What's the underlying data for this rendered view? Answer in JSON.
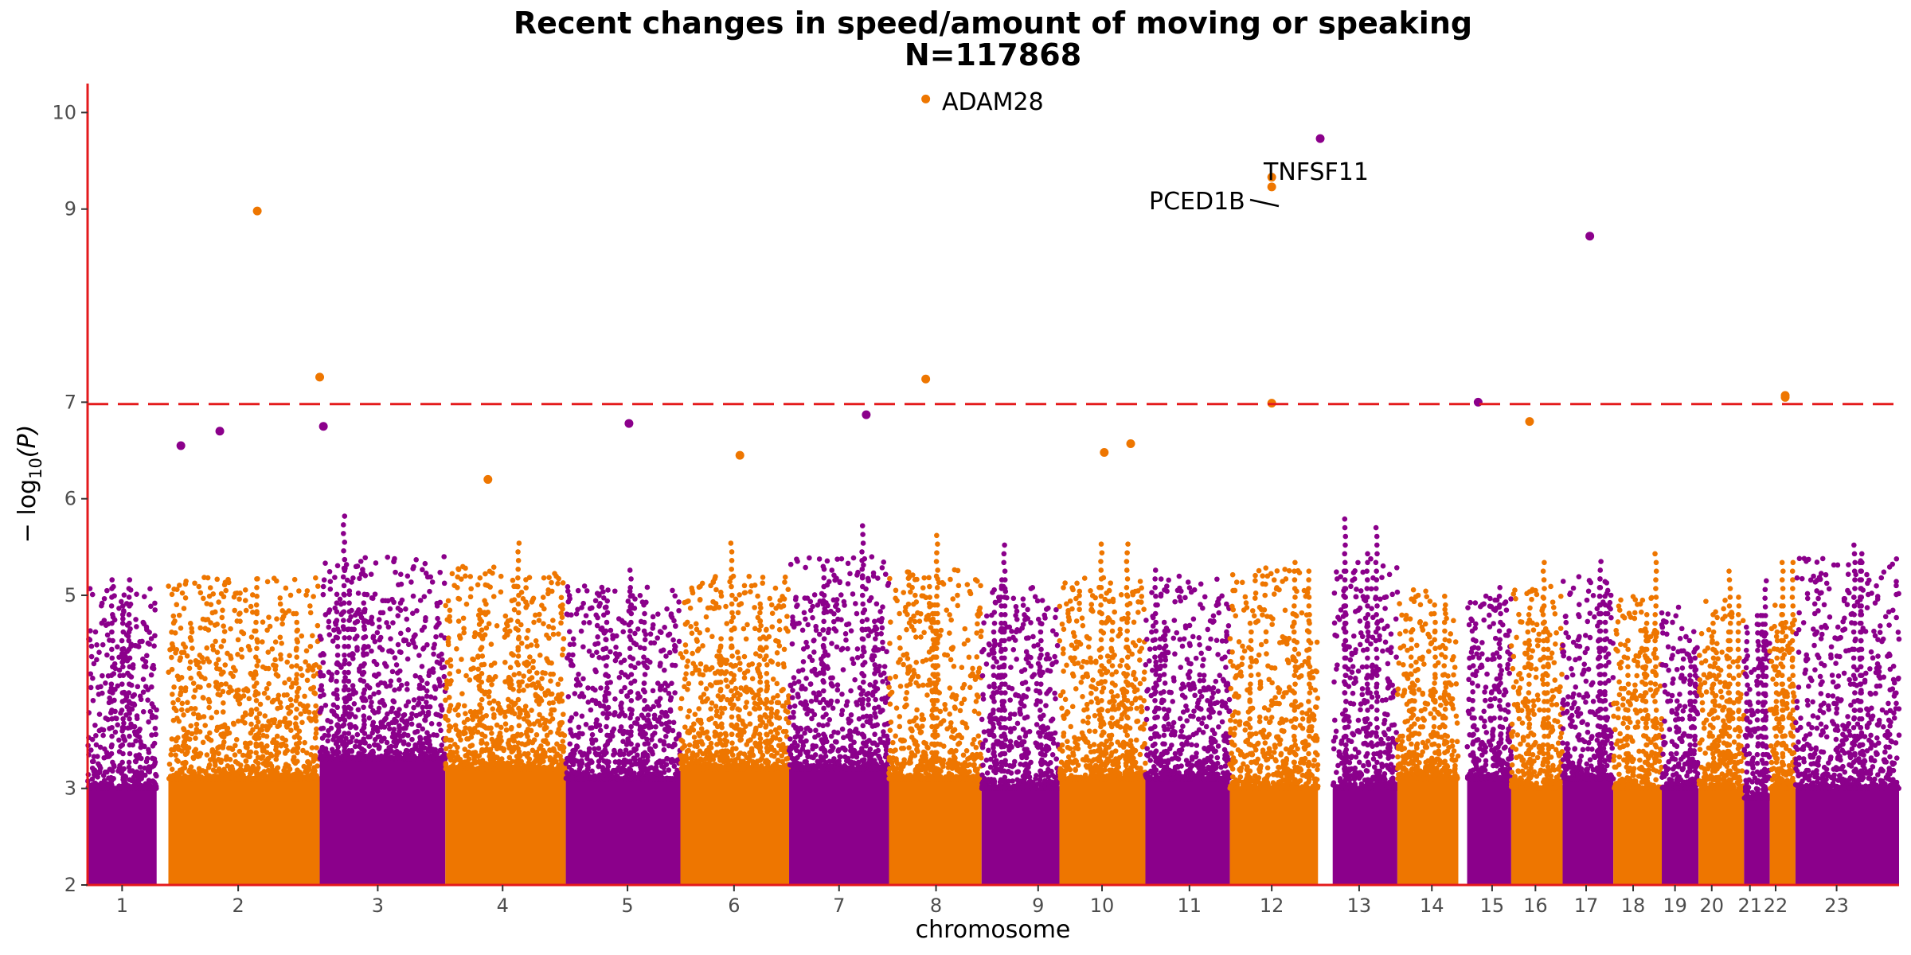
{
  "chart_data": {
    "type": "scatter",
    "subtype": "manhattan",
    "title": "Recent changes in speed/amount of moving or speaking",
    "subtitle": "N=117868",
    "xlabel": "chromosome",
    "ylabel_main": "− log",
    "ylabel_sub": "10",
    "ylabel_tail": "(P)",
    "ylim": [
      2,
      10.3
    ],
    "yticks": [
      2,
      3,
      5,
      6,
      7,
      9,
      10
    ],
    "threshold": 6.98,
    "grid": false,
    "colors": {
      "odd": "#8B008B",
      "even": "#EE7600",
      "threshold": "#E41A1C",
      "axis": "#E41A1C"
    },
    "chromosomes": [
      {
        "label": "1",
        "start": 0,
        "end": 94,
        "center": 47,
        "base": 3.0,
        "peak": 4.5
      },
      {
        "label": "2",
        "start": 110,
        "end": 316,
        "center": 205,
        "base": 3.1,
        "peak": 4.6
      },
      {
        "label": "3",
        "start": 316,
        "end": 487,
        "center": 395,
        "base": 3.3,
        "peak": 4.8
      },
      {
        "label": "4",
        "start": 487,
        "end": 651,
        "center": 565,
        "base": 3.2,
        "peak": 4.7
      },
      {
        "label": "5",
        "start": 651,
        "end": 807,
        "center": 735,
        "base": 3.1,
        "peak": 4.5
      },
      {
        "label": "6",
        "start": 807,
        "end": 955,
        "center": 880,
        "base": 3.2,
        "peak": 4.6
      },
      {
        "label": "7",
        "start": 955,
        "end": 1091,
        "center": 1023,
        "base": 3.2,
        "peak": 4.8
      },
      {
        "label": "8",
        "start": 1091,
        "end": 1217,
        "center": 1155,
        "base": 3.1,
        "peak": 4.7
      },
      {
        "label": "9",
        "start": 1217,
        "end": 1323,
        "center": 1294,
        "base": 3.0,
        "peak": 4.5
      },
      {
        "label": "10",
        "start": 1323,
        "end": 1440,
        "center": 1381,
        "base": 3.1,
        "peak": 4.6
      },
      {
        "label": "11",
        "start": 1440,
        "end": 1555,
        "center": 1500,
        "base": 3.1,
        "peak": 4.6
      },
      {
        "label": "12",
        "start": 1555,
        "end": 1675,
        "center": 1612,
        "base": 3.0,
        "peak": 4.7
      },
      {
        "label": "13",
        "start": 1695,
        "end": 1783,
        "center": 1731,
        "base": 3.0,
        "peak": 4.8
      },
      {
        "label": "14",
        "start": 1783,
        "end": 1866,
        "center": 1830,
        "base": 3.1,
        "peak": 4.5
      },
      {
        "label": "15",
        "start": 1878,
        "end": 1938,
        "center": 1912,
        "base": 3.1,
        "peak": 4.4
      },
      {
        "label": "16",
        "start": 1938,
        "end": 2008,
        "center": 1971,
        "base": 3.0,
        "peak": 4.5
      },
      {
        "label": "17",
        "start": 2008,
        "end": 2077,
        "center": 2040,
        "base": 3.1,
        "peak": 4.6
      },
      {
        "label": "18",
        "start": 2077,
        "end": 2143,
        "center": 2104,
        "base": 3.0,
        "peak": 4.4
      },
      {
        "label": "19",
        "start": 2143,
        "end": 2193,
        "center": 2161,
        "base": 3.0,
        "peak": 4.3
      },
      {
        "label": "20",
        "start": 2193,
        "end": 2255,
        "center": 2211,
        "base": 3.0,
        "peak": 4.4
      },
      {
        "label": "21",
        "start": 2255,
        "end": 2290,
        "center": 2263,
        "base": 2.9,
        "peak": 4.2
      },
      {
        "label": "22",
        "start": 2290,
        "end": 2325,
        "center": 2298,
        "base": 3.0,
        "peak": 4.3
      },
      {
        "label": "23",
        "start": 2325,
        "end": 2466,
        "center": 2381,
        "base": 3.0,
        "peak": 4.8
      }
    ],
    "notable_points": [
      {
        "x": 127,
        "y": 6.55,
        "chrom": "1"
      },
      {
        "x": 180,
        "y": 6.7,
        "chrom": "1"
      },
      {
        "x": 231,
        "y": 8.98,
        "chrom": "2"
      },
      {
        "x": 316,
        "y": 7.26,
        "chrom": "2"
      },
      {
        "x": 321,
        "y": 6.75,
        "chrom": "3"
      },
      {
        "x": 545,
        "y": 6.2,
        "chrom": "4"
      },
      {
        "x": 737,
        "y": 6.78,
        "chrom": "5"
      },
      {
        "x": 888,
        "y": 6.45,
        "chrom": "6"
      },
      {
        "x": 1060,
        "y": 6.87,
        "chrom": "7"
      },
      {
        "x": 1141,
        "y": 10.14,
        "chrom": "8"
      },
      {
        "x": 1141,
        "y": 7.24,
        "chrom": "8"
      },
      {
        "x": 1384,
        "y": 6.48,
        "chrom": "10"
      },
      {
        "x": 1420,
        "y": 6.57,
        "chrom": "10"
      },
      {
        "x": 1612,
        "y": 9.33,
        "chrom": "12"
      },
      {
        "x": 1612,
        "y": 9.23,
        "chrom": "12"
      },
      {
        "x": 1612,
        "y": 6.99,
        "chrom": "12"
      },
      {
        "x": 1678,
        "y": 9.73,
        "chrom": "13"
      },
      {
        "x": 1893,
        "y": 7.0,
        "chrom": "15"
      },
      {
        "x": 1963,
        "y": 6.8,
        "chrom": "16"
      },
      {
        "x": 2045,
        "y": 8.72,
        "chrom": "17"
      },
      {
        "x": 2311,
        "y": 7.07,
        "chrom": "22"
      },
      {
        "x": 2311,
        "y": 7.05,
        "chrom": "22"
      }
    ],
    "annotations": [
      {
        "label": "ADAM28",
        "x": 1141,
        "y": 10.14
      },
      {
        "label": "TNFSF11",
        "x": 1612,
        "y": 9.33
      },
      {
        "label": "PCED1B",
        "x": 1612,
        "y": 9.33
      }
    ]
  }
}
